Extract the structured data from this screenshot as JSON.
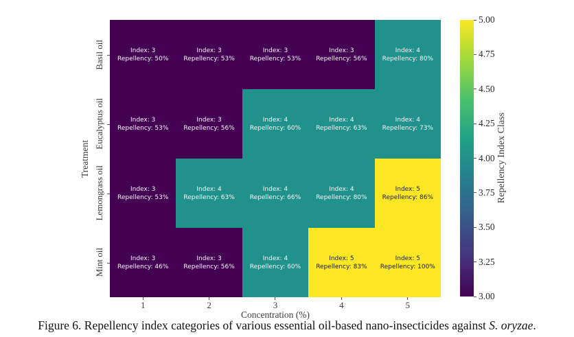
{
  "chart_data": {
    "type": "heatmap",
    "title": "",
    "xlabel": "Concentration (%)",
    "ylabel": "Treatment",
    "x_ticks": [
      "1",
      "2",
      "3",
      "4",
      "5"
    ],
    "y_ticks": [
      "Basil oil",
      "Eucalyptus oil",
      "Lemongrass oil",
      "Mint oil"
    ],
    "colorbar": {
      "label": "Repellency Index Class",
      "ticks": [
        "5.00",
        "4.75",
        "4.50",
        "4.25",
        "4.00",
        "3.75",
        "3.50",
        "3.25",
        "3.00"
      ],
      "range": [
        3.0,
        5.0
      ],
      "colormap": "viridis",
      "gradient_stops": [
        "#440154 0%",
        "#46327e 14%",
        "#365c8d 29%",
        "#277f8e 43%",
        "#1fa187 57%",
        "#4ac16d 71%",
        "#a0da39 86%",
        "#fde725 100%"
      ]
    },
    "value_colors": {
      "3": "#440154",
      "4": "#21918c",
      "5": "#fde725"
    },
    "annotation_text_colors": {
      "on_dark": "#f5f5f5",
      "on_light": "#1a1a1a"
    },
    "rows": [
      {
        "treatment": "Basil oil",
        "cells": [
          {
            "index": 3,
            "repellency_pct": 50,
            "line1": "Index: 3",
            "line2": "Repellency: 50%"
          },
          {
            "index": 3,
            "repellency_pct": 53,
            "line1": "Index: 3",
            "line2": "Repellency: 53%"
          },
          {
            "index": 3,
            "repellency_pct": 53,
            "line1": "Index: 3",
            "line2": "Repellency: 53%"
          },
          {
            "index": 3,
            "repellency_pct": 56,
            "line1": "Index: 3",
            "line2": "Repellency: 56%"
          },
          {
            "index": 4,
            "repellency_pct": 80,
            "line1": "Index: 4",
            "line2": "Repellency: 80%"
          }
        ]
      },
      {
        "treatment": "Eucalyptus oil",
        "cells": [
          {
            "index": 3,
            "repellency_pct": 53,
            "line1": "Index: 3",
            "line2": "Repellency: 53%"
          },
          {
            "index": 3,
            "repellency_pct": 56,
            "line1": "Index: 3",
            "line2": "Repellency: 56%"
          },
          {
            "index": 4,
            "repellency_pct": 60,
            "line1": "Index: 4",
            "line2": "Repellency: 60%"
          },
          {
            "index": 4,
            "repellency_pct": 63,
            "line1": "Index: 4",
            "line2": "Repellency: 63%"
          },
          {
            "index": 4,
            "repellency_pct": 73,
            "line1": "Index: 4",
            "line2": "Repellency: 73%"
          }
        ]
      },
      {
        "treatment": "Lemongrass oil",
        "cells": [
          {
            "index": 3,
            "repellency_pct": 53,
            "line1": "Index: 3",
            "line2": "Repellency: 53%"
          },
          {
            "index": 4,
            "repellency_pct": 63,
            "line1": "Index: 4",
            "line2": "Repellency: 63%"
          },
          {
            "index": 4,
            "repellency_pct": 66,
            "line1": "Index: 4",
            "line2": "Repellency: 66%"
          },
          {
            "index": 4,
            "repellency_pct": 80,
            "line1": "Index: 4",
            "line2": "Repellency: 80%"
          },
          {
            "index": 5,
            "repellency_pct": 86,
            "line1": "Index: 5",
            "line2": "Repellency: 86%"
          }
        ]
      },
      {
        "treatment": "Mint oil",
        "cells": [
          {
            "index": 3,
            "repellency_pct": 46,
            "line1": "Index: 3",
            "line2": "Repellency: 46%"
          },
          {
            "index": 3,
            "repellency_pct": 56,
            "line1": "Index: 3",
            "line2": "Repellency: 56%"
          },
          {
            "index": 4,
            "repellency_pct": 60,
            "line1": "Index: 4",
            "line2": "Repellency: 60%"
          },
          {
            "index": 5,
            "repellency_pct": 83,
            "line1": "Index: 5",
            "line2": "Repellency: 83%"
          },
          {
            "index": 5,
            "repellency_pct": 100,
            "line1": "Index: 5",
            "line2": "Repellency: 100%"
          }
        ]
      }
    ]
  },
  "caption": {
    "prefix": "Figure 6. Repellency index categories of various essential oil-based nano-insecticides against ",
    "species": "S. oryzae",
    "suffix": "."
  }
}
